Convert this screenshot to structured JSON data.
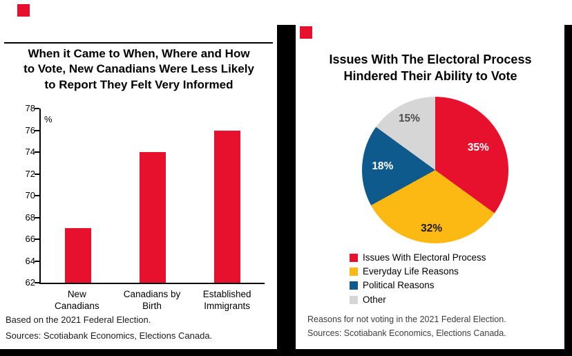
{
  "page": {
    "background": "#ffffff",
    "frame_color": "#000000",
    "accent_red": "#e8112d"
  },
  "left_panel": {
    "title_lines": [
      "When it Came to When, Where and How",
      "to Vote, New Canadians Were Less Likely",
      "to Report They Felt Very Informed"
    ]
  },
  "right_panel": {
    "title_lines": [
      "Issues With The Electoral Process",
      "Hindered Their Ability to Vote"
    ]
  },
  "chart_data": [
    {
      "type": "bar",
      "title": "When it Came to When, Where and How to Vote, New Canadians Were Less Likely to Report They Felt Very Informed",
      "categories": [
        "New Canadians",
        "Canadians by Birth",
        "Established Immigrants"
      ],
      "values": [
        67,
        74,
        76
      ],
      "xlabel": "",
      "ylabel": "%",
      "ylim": [
        62,
        78
      ],
      "ytick_step": 2,
      "grid": false,
      "bar_color": "#e8112d",
      "footnotes": [
        "Based on the 2021 Federal Election.",
        "Sources: Scotiabank Economics, Elections Canada."
      ]
    },
    {
      "type": "pie",
      "title": "Issues With The Electoral Process Hindered Their Ability to Vote",
      "labels": [
        "Issues With Electoral Process",
        "Everyday Life Reasons",
        "Political Reasons",
        "Other"
      ],
      "values": [
        35,
        32,
        18,
        15
      ],
      "slice_labels": [
        "35%",
        "32%",
        "18%",
        "15%"
      ],
      "colors": [
        "#e8112d",
        "#fdb913",
        "#0f5a8c",
        "#d6d6d6"
      ],
      "slice_label_colors": [
        "#ffffff",
        "#1a1a1a",
        "#ffffff",
        "#4d4d4d"
      ],
      "slice_label_radius": [
        0.66,
        0.8,
        0.72,
        0.78
      ],
      "start_angle_deg": 0,
      "direction": "clockwise",
      "legend_position": "bottom-left",
      "footnotes": [
        "Reasons for not voting in the 2021 Federal Election.",
        "Sources: Scotiabank Economics, Elections Canada."
      ]
    }
  ]
}
